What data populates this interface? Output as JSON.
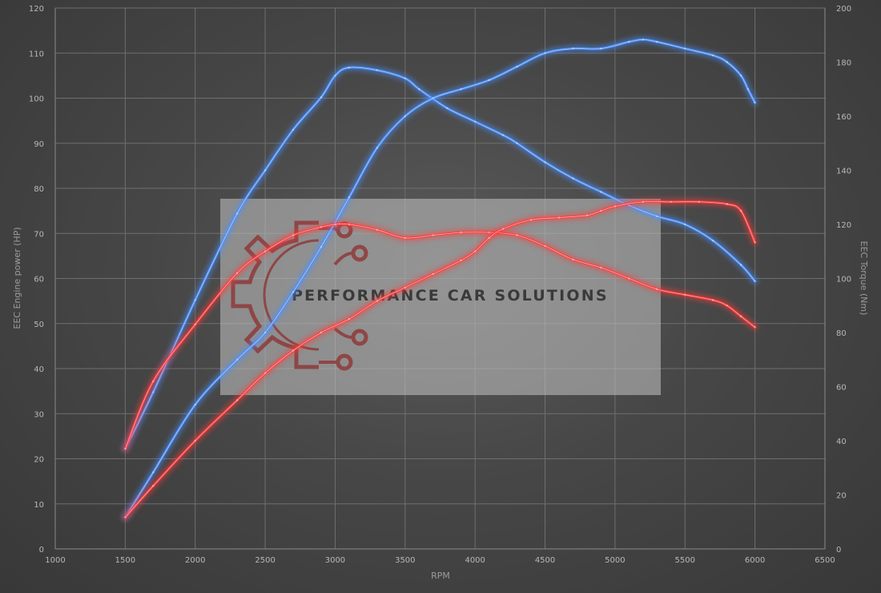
{
  "chart_data": {
    "type": "line",
    "xlabel": "RPM",
    "ylabel": "EEC Engine power (HP)",
    "y2label": "EEC Torque (Nm)",
    "xlim": [
      1000,
      6500
    ],
    "ylim": [
      0,
      120
    ],
    "y2lim": [
      0,
      200
    ],
    "x_ticks": [
      1000,
      1500,
      2000,
      2500,
      3000,
      3500,
      4000,
      4500,
      5000,
      5500,
      6000,
      6500
    ],
    "y_ticks": [
      0,
      10,
      20,
      30,
      40,
      50,
      60,
      70,
      80,
      90,
      100,
      110,
      120
    ],
    "y2_ticks": [
      0,
      20,
      40,
      60,
      80,
      100,
      120,
      140,
      160,
      180,
      200
    ],
    "grid": true,
    "legend": "none",
    "series": [
      {
        "axis": "right",
        "color": "#4a90ff",
        "x": [
          1500,
          1700,
          2000,
          2300,
          2500,
          2700,
          2900,
          3000,
          3100,
          3300,
          3500,
          3600,
          3800,
          4000,
          4200,
          4300,
          4500,
          4700,
          4900,
          5100,
          5300,
          5500,
          5700,
          5900,
          6000
        ],
        "y": [
          37,
          58,
          92,
          124,
          140,
          155,
          167,
          175,
          178,
          177,
          174,
          170,
          163,
          158,
          153,
          150,
          143,
          137,
          132,
          127,
          123,
          120,
          114,
          105,
          99
        ]
      },
      {
        "axis": "left",
        "color": "#4a90ff",
        "x": [
          1500,
          1700,
          2000,
          2300,
          2500,
          2700,
          2900,
          3100,
          3300,
          3500,
          3700,
          3900,
          4100,
          4300,
          4500,
          4700,
          4900,
          5100,
          5200,
          5300,
          5500,
          5700,
          5800,
          5900,
          5950,
          6000
        ],
        "y": [
          7,
          17,
          32,
          42,
          48,
          57,
          67,
          78,
          89,
          96,
          100,
          102,
          104,
          107,
          110,
          111,
          111,
          112.5,
          113,
          112.5,
          111,
          109.5,
          108,
          105,
          102,
          99
        ]
      },
      {
        "axis": "right",
        "color": "#ff3b3b",
        "x": [
          1500,
          1700,
          2000,
          2300,
          2500,
          2700,
          2900,
          3000,
          3100,
          3300,
          3500,
          3700,
          3900,
          4100,
          4300,
          4500,
          4700,
          4900,
          5100,
          5300,
          5500,
          5700,
          5800,
          5900,
          6000
        ],
        "y": [
          37,
          62,
          83,
          102,
          110,
          116,
          119,
          120,
          120,
          118,
          115,
          116,
          117,
          117,
          116,
          112,
          107,
          104,
          100,
          96,
          94,
          92,
          90,
          86,
          82
        ]
      },
      {
        "axis": "left",
        "color": "#ff3b3b",
        "x": [
          1500,
          1700,
          2000,
          2300,
          2500,
          2700,
          2900,
          3100,
          3300,
          3500,
          3700,
          3900,
          4000,
          4100,
          4200,
          4400,
          4600,
          4800,
          4900,
          5000,
          5200,
          5400,
          5600,
          5800,
          5900,
          6000
        ],
        "y": [
          7,
          14,
          24,
          33,
          39,
          44,
          48,
          51,
          55,
          58,
          61,
          64,
          66,
          69,
          71,
          73,
          73.5,
          74,
          75,
          76,
          77,
          77,
          77,
          76.5,
          75,
          68
        ]
      }
    ]
  },
  "watermark": {
    "text": "PERFORMANCE CAR SOLUTIONS"
  }
}
